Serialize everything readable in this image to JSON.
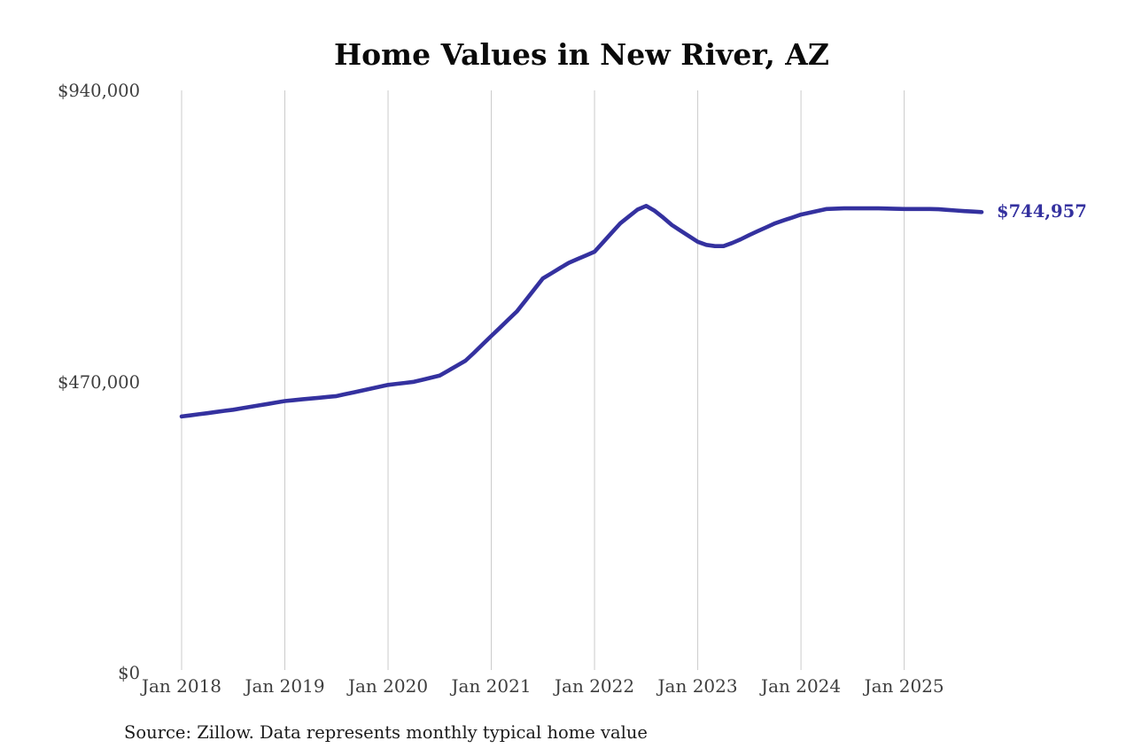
{
  "chart_data": {
    "type": "line",
    "title": "Home Values in New River, AZ",
    "source_note": "Source: Zillow. Data represents monthly typical home value",
    "xlabel": "",
    "ylabel": "",
    "ylim": [
      0,
      940000
    ],
    "grid": "vertical-gridlines-only",
    "legend": "none",
    "y_ticks": [
      {
        "label": "$940,000",
        "value": 940000
      },
      {
        "label": "$470,000",
        "value": 470000
      },
      {
        "label": "$0",
        "value": 0
      }
    ],
    "x_ticks": [
      {
        "label": "Jan 2018",
        "month_index": 0
      },
      {
        "label": "Jan 2019",
        "month_index": 12
      },
      {
        "label": "Jan 2020",
        "month_index": 24
      },
      {
        "label": "Jan 2021",
        "month_index": 36
      },
      {
        "label": "Jan 2022",
        "month_index": 48
      },
      {
        "label": "Jan 2023",
        "month_index": 60
      },
      {
        "label": "Jan 2024",
        "month_index": 72
      },
      {
        "label": "Jan 2025",
        "month_index": 84
      }
    ],
    "x_start": "Jan 2018",
    "x_end": "Oct 2025",
    "frequency": "monthly",
    "end_label": "$744,957",
    "latest_value": 744957,
    "series": [
      {
        "name": "Typical home value",
        "color": "#34319f",
        "values": [
          415000,
          416800,
          418600,
          420400,
          422300,
          424200,
          426000,
          428300,
          430600,
          433000,
          435300,
          437700,
          440000,
          441300,
          442700,
          444000,
          445300,
          446700,
          448000,
          451000,
          454000,
          457000,
          460000,
          463000,
          466000,
          467700,
          469300,
          471000,
          474300,
          477700,
          481000,
          489000,
          497000,
          505000,
          518000,
          531500,
          545000,
          558300,
          571700,
          585000,
          602700,
          620300,
          638000,
          646300,
          654700,
          663000,
          669000,
          675000,
          681000,
          696300,
          711700,
          727000,
          738000,
          749000,
          755000,
          747000,
          736000,
          724000,
          715000,
          706000,
          697000,
          692000,
          690000,
          690000,
          695000,
          701000,
          708000,
          714300,
          720700,
          727000,
          731700,
          736300,
          741000,
          744000,
          747000,
          750000,
          750500,
          751000,
          751000,
          751000,
          751000,
          751000,
          750700,
          750300,
          750000,
          750000,
          750000,
          750000,
          749500,
          748500,
          747500,
          746500,
          745800,
          744957
        ]
      }
    ]
  },
  "styles": {
    "background": "#ffffff",
    "grid_color": "#cbcbcb",
    "tick_color": "#3e3e3e",
    "title_color": "#0a0a0a",
    "source_color": "#1c1c1c",
    "accent": "#34319f"
  }
}
